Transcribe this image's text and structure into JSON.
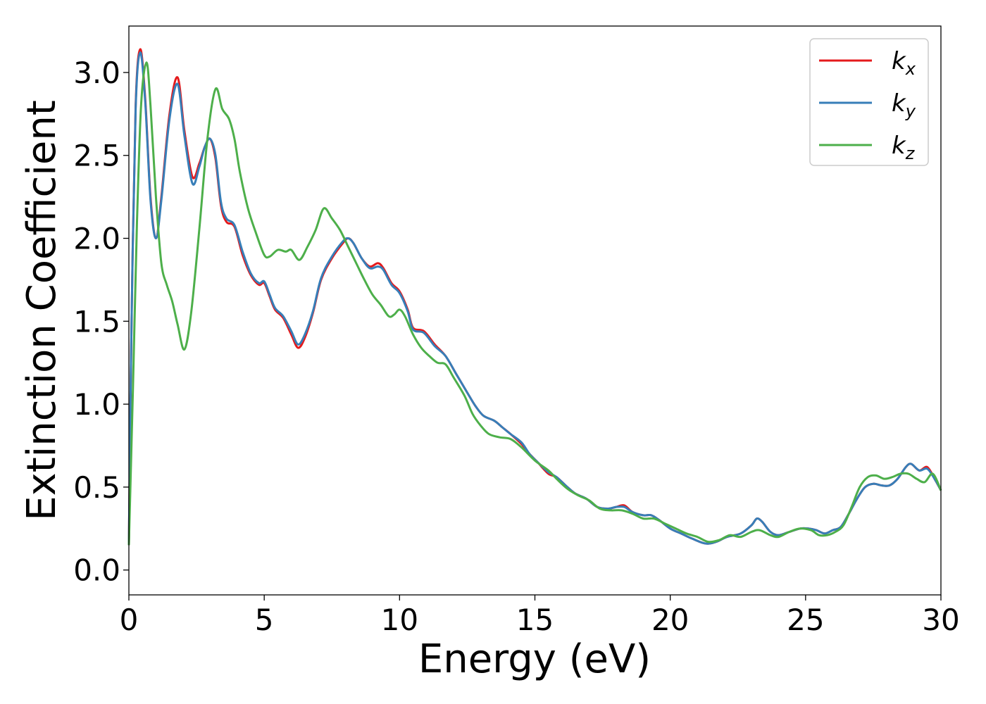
{
  "chart_data": {
    "type": "line",
    "title": "",
    "xlabel": "Energy (eV)",
    "ylabel": "Extinction Coefficient",
    "xlim": [
      0,
      30
    ],
    "ylim": [
      -0.15,
      3.28
    ],
    "xticks": [
      0,
      5,
      10,
      15,
      20,
      25,
      30
    ],
    "xtick_labels": [
      "0",
      "5",
      "10",
      "15",
      "20",
      "25",
      "30"
    ],
    "yticks": [
      0.0,
      0.5,
      1.0,
      1.5,
      2.0,
      2.5,
      3.0
    ],
    "ytick_labels": [
      "0.0",
      "0.5",
      "1.0",
      "1.5",
      "2.0",
      "2.5",
      "3.0"
    ],
    "grid": false,
    "legend_position": "top-right",
    "series": [
      {
        "name": "k_x",
        "label_main": "k",
        "label_sub": "x",
        "color": "#e41a1c",
        "points": [
          [
            0,
            0.15
          ],
          [
            0.1,
            1.5
          ],
          [
            0.25,
            2.8
          ],
          [
            0.42,
            3.14
          ],
          [
            0.6,
            2.85
          ],
          [
            0.8,
            2.25
          ],
          [
            1.0,
            2.0
          ],
          [
            1.2,
            2.25
          ],
          [
            1.5,
            2.75
          ],
          [
            1.8,
            2.97
          ],
          [
            2.05,
            2.65
          ],
          [
            2.35,
            2.37
          ],
          [
            2.6,
            2.45
          ],
          [
            2.8,
            2.55
          ],
          [
            3.0,
            2.6
          ],
          [
            3.2,
            2.48
          ],
          [
            3.4,
            2.2
          ],
          [
            3.6,
            2.1
          ],
          [
            3.9,
            2.07
          ],
          [
            4.2,
            1.9
          ],
          [
            4.5,
            1.78
          ],
          [
            4.8,
            1.72
          ],
          [
            5.0,
            1.73
          ],
          [
            5.2,
            1.65
          ],
          [
            5.4,
            1.57
          ],
          [
            5.7,
            1.52
          ],
          [
            6.0,
            1.42
          ],
          [
            6.25,
            1.34
          ],
          [
            6.5,
            1.4
          ],
          [
            6.8,
            1.55
          ],
          [
            7.1,
            1.75
          ],
          [
            7.5,
            1.88
          ],
          [
            7.9,
            1.97
          ],
          [
            8.1,
            2.0
          ],
          [
            8.3,
            1.97
          ],
          [
            8.6,
            1.88
          ],
          [
            8.9,
            1.83
          ],
          [
            9.2,
            1.85
          ],
          [
            9.4,
            1.82
          ],
          [
            9.7,
            1.73
          ],
          [
            10.0,
            1.68
          ],
          [
            10.3,
            1.57
          ],
          [
            10.5,
            1.46
          ],
          [
            10.9,
            1.44
          ],
          [
            11.3,
            1.36
          ],
          [
            11.7,
            1.29
          ],
          [
            12.1,
            1.18
          ],
          [
            12.5,
            1.07
          ],
          [
            12.8,
            0.99
          ],
          [
            13.1,
            0.93
          ],
          [
            13.5,
            0.9
          ],
          [
            13.8,
            0.86
          ],
          [
            14.1,
            0.82
          ],
          [
            14.5,
            0.76
          ],
          [
            14.8,
            0.7
          ],
          [
            15.1,
            0.65
          ],
          [
            15.5,
            0.58
          ],
          [
            15.8,
            0.56
          ],
          [
            16.2,
            0.5
          ],
          [
            16.5,
            0.46
          ],
          [
            16.9,
            0.43
          ],
          [
            17.3,
            0.38
          ],
          [
            17.7,
            0.37
          ],
          [
            18.0,
            0.38
          ],
          [
            18.3,
            0.39
          ],
          [
            18.6,
            0.35
          ],
          [
            19.0,
            0.33
          ],
          [
            19.3,
            0.33
          ],
          [
            19.6,
            0.3
          ],
          [
            20.0,
            0.25
          ],
          [
            20.4,
            0.22
          ],
          [
            20.8,
            0.19
          ],
          [
            21.3,
            0.16
          ],
          [
            21.7,
            0.17
          ],
          [
            22.1,
            0.2
          ],
          [
            22.6,
            0.22
          ],
          [
            23.0,
            0.27
          ],
          [
            23.2,
            0.31
          ],
          [
            23.4,
            0.29
          ],
          [
            23.7,
            0.23
          ],
          [
            24.0,
            0.21
          ],
          [
            24.4,
            0.23
          ],
          [
            24.8,
            0.25
          ],
          [
            25.1,
            0.25
          ],
          [
            25.4,
            0.24
          ],
          [
            25.7,
            0.22
          ],
          [
            26.0,
            0.24
          ],
          [
            26.3,
            0.26
          ],
          [
            26.6,
            0.34
          ],
          [
            26.9,
            0.43
          ],
          [
            27.2,
            0.5
          ],
          [
            27.5,
            0.52
          ],
          [
            27.8,
            0.51
          ],
          [
            28.1,
            0.51
          ],
          [
            28.4,
            0.55
          ],
          [
            28.7,
            0.62
          ],
          [
            28.9,
            0.64
          ],
          [
            29.2,
            0.6
          ],
          [
            29.5,
            0.62
          ],
          [
            29.8,
            0.54
          ],
          [
            30.0,
            0.48
          ]
        ]
      },
      {
        "name": "k_y",
        "label_main": "k",
        "label_sub": "y",
        "color": "#377eb8",
        "points": [
          [
            0,
            0.15
          ],
          [
            0.1,
            1.5
          ],
          [
            0.25,
            2.78
          ],
          [
            0.42,
            3.12
          ],
          [
            0.6,
            2.83
          ],
          [
            0.8,
            2.23
          ],
          [
            1.0,
            2.0
          ],
          [
            1.2,
            2.23
          ],
          [
            1.5,
            2.72
          ],
          [
            1.8,
            2.93
          ],
          [
            2.05,
            2.62
          ],
          [
            2.35,
            2.33
          ],
          [
            2.6,
            2.43
          ],
          [
            2.8,
            2.55
          ],
          [
            3.0,
            2.6
          ],
          [
            3.2,
            2.5
          ],
          [
            3.4,
            2.22
          ],
          [
            3.6,
            2.12
          ],
          [
            3.9,
            2.08
          ],
          [
            4.2,
            1.92
          ],
          [
            4.5,
            1.79
          ],
          [
            4.8,
            1.73
          ],
          [
            5.0,
            1.74
          ],
          [
            5.2,
            1.66
          ],
          [
            5.4,
            1.58
          ],
          [
            5.7,
            1.53
          ],
          [
            6.0,
            1.44
          ],
          [
            6.25,
            1.36
          ],
          [
            6.5,
            1.42
          ],
          [
            6.8,
            1.56
          ],
          [
            7.1,
            1.76
          ],
          [
            7.5,
            1.89
          ],
          [
            7.9,
            1.98
          ],
          [
            8.1,
            2.0
          ],
          [
            8.3,
            1.97
          ],
          [
            8.6,
            1.88
          ],
          [
            8.9,
            1.82
          ],
          [
            9.2,
            1.83
          ],
          [
            9.4,
            1.81
          ],
          [
            9.7,
            1.72
          ],
          [
            10.0,
            1.67
          ],
          [
            10.3,
            1.56
          ],
          [
            10.5,
            1.45
          ],
          [
            10.9,
            1.43
          ],
          [
            11.3,
            1.35
          ],
          [
            11.7,
            1.29
          ],
          [
            12.1,
            1.18
          ],
          [
            12.5,
            1.07
          ],
          [
            12.8,
            0.99
          ],
          [
            13.1,
            0.93
          ],
          [
            13.5,
            0.9
          ],
          [
            13.8,
            0.86
          ],
          [
            14.1,
            0.82
          ],
          [
            14.5,
            0.77
          ],
          [
            14.8,
            0.7
          ],
          [
            15.1,
            0.65
          ],
          [
            15.5,
            0.59
          ],
          [
            15.8,
            0.56
          ],
          [
            16.2,
            0.5
          ],
          [
            16.5,
            0.46
          ],
          [
            16.9,
            0.43
          ],
          [
            17.3,
            0.38
          ],
          [
            17.7,
            0.37
          ],
          [
            18.0,
            0.38
          ],
          [
            18.3,
            0.38
          ],
          [
            18.6,
            0.35
          ],
          [
            19.0,
            0.33
          ],
          [
            19.3,
            0.33
          ],
          [
            19.6,
            0.3
          ],
          [
            20.0,
            0.25
          ],
          [
            20.4,
            0.22
          ],
          [
            20.8,
            0.19
          ],
          [
            21.3,
            0.16
          ],
          [
            21.7,
            0.17
          ],
          [
            22.1,
            0.2
          ],
          [
            22.6,
            0.22
          ],
          [
            23.0,
            0.27
          ],
          [
            23.2,
            0.31
          ],
          [
            23.4,
            0.29
          ],
          [
            23.7,
            0.23
          ],
          [
            24.0,
            0.21
          ],
          [
            24.4,
            0.23
          ],
          [
            24.8,
            0.25
          ],
          [
            25.1,
            0.25
          ],
          [
            25.4,
            0.24
          ],
          [
            25.7,
            0.22
          ],
          [
            26.0,
            0.24
          ],
          [
            26.3,
            0.26
          ],
          [
            26.6,
            0.34
          ],
          [
            26.9,
            0.43
          ],
          [
            27.2,
            0.5
          ],
          [
            27.5,
            0.52
          ],
          [
            27.8,
            0.51
          ],
          [
            28.1,
            0.51
          ],
          [
            28.4,
            0.55
          ],
          [
            28.7,
            0.62
          ],
          [
            28.9,
            0.64
          ],
          [
            29.2,
            0.6
          ],
          [
            29.5,
            0.61
          ],
          [
            29.8,
            0.54
          ],
          [
            30.0,
            0.48
          ]
        ]
      },
      {
        "name": "k_z",
        "label_main": "k",
        "label_sub": "z",
        "color": "#4daf4a",
        "points": [
          [
            0,
            0.15
          ],
          [
            0.15,
            1.1
          ],
          [
            0.3,
            2.1
          ],
          [
            0.45,
            2.8
          ],
          [
            0.65,
            3.06
          ],
          [
            0.8,
            2.8
          ],
          [
            1.0,
            2.25
          ],
          [
            1.2,
            1.85
          ],
          [
            1.4,
            1.72
          ],
          [
            1.6,
            1.62
          ],
          [
            1.8,
            1.48
          ],
          [
            2.05,
            1.33
          ],
          [
            2.3,
            1.55
          ],
          [
            2.6,
            2.05
          ],
          [
            2.9,
            2.6
          ],
          [
            3.2,
            2.9
          ],
          [
            3.45,
            2.78
          ],
          [
            3.7,
            2.72
          ],
          [
            3.9,
            2.6
          ],
          [
            4.1,
            2.4
          ],
          [
            4.4,
            2.18
          ],
          [
            4.7,
            2.03
          ],
          [
            5.0,
            1.9
          ],
          [
            5.2,
            1.89
          ],
          [
            5.5,
            1.93
          ],
          [
            5.8,
            1.92
          ],
          [
            6.0,
            1.93
          ],
          [
            6.3,
            1.87
          ],
          [
            6.6,
            1.95
          ],
          [
            6.9,
            2.05
          ],
          [
            7.2,
            2.18
          ],
          [
            7.5,
            2.12
          ],
          [
            7.8,
            2.05
          ],
          [
            8.1,
            1.95
          ],
          [
            8.4,
            1.85
          ],
          [
            8.7,
            1.75
          ],
          [
            9.0,
            1.66
          ],
          [
            9.3,
            1.6
          ],
          [
            9.6,
            1.53
          ],
          [
            9.8,
            1.54
          ],
          [
            10.0,
            1.57
          ],
          [
            10.2,
            1.53
          ],
          [
            10.5,
            1.42
          ],
          [
            10.8,
            1.34
          ],
          [
            11.1,
            1.29
          ],
          [
            11.4,
            1.25
          ],
          [
            11.7,
            1.24
          ],
          [
            12.0,
            1.16
          ],
          [
            12.4,
            1.05
          ],
          [
            12.7,
            0.94
          ],
          [
            13.0,
            0.87
          ],
          [
            13.3,
            0.82
          ],
          [
            13.7,
            0.8
          ],
          [
            14.1,
            0.79
          ],
          [
            14.5,
            0.74
          ],
          [
            15.0,
            0.66
          ],
          [
            15.5,
            0.6
          ],
          [
            15.8,
            0.55
          ],
          [
            16.2,
            0.49
          ],
          [
            16.6,
            0.45
          ],
          [
            17.0,
            0.42
          ],
          [
            17.4,
            0.37
          ],
          [
            17.8,
            0.36
          ],
          [
            18.2,
            0.36
          ],
          [
            18.6,
            0.34
          ],
          [
            19.0,
            0.31
          ],
          [
            19.4,
            0.31
          ],
          [
            19.8,
            0.28
          ],
          [
            20.2,
            0.25
          ],
          [
            20.6,
            0.22
          ],
          [
            21.0,
            0.2
          ],
          [
            21.4,
            0.17
          ],
          [
            21.8,
            0.18
          ],
          [
            22.2,
            0.21
          ],
          [
            22.6,
            0.2
          ],
          [
            23.0,
            0.23
          ],
          [
            23.3,
            0.24
          ],
          [
            23.7,
            0.21
          ],
          [
            24.0,
            0.2
          ],
          [
            24.4,
            0.23
          ],
          [
            24.8,
            0.25
          ],
          [
            25.2,
            0.24
          ],
          [
            25.5,
            0.21
          ],
          [
            25.8,
            0.21
          ],
          [
            26.1,
            0.23
          ],
          [
            26.4,
            0.27
          ],
          [
            26.7,
            0.38
          ],
          [
            27.0,
            0.5
          ],
          [
            27.3,
            0.56
          ],
          [
            27.6,
            0.57
          ],
          [
            27.9,
            0.55
          ],
          [
            28.2,
            0.56
          ],
          [
            28.5,
            0.58
          ],
          [
            28.8,
            0.58
          ],
          [
            29.1,
            0.55
          ],
          [
            29.4,
            0.53
          ],
          [
            29.7,
            0.58
          ],
          [
            30.0,
            0.48
          ]
        ]
      }
    ]
  }
}
